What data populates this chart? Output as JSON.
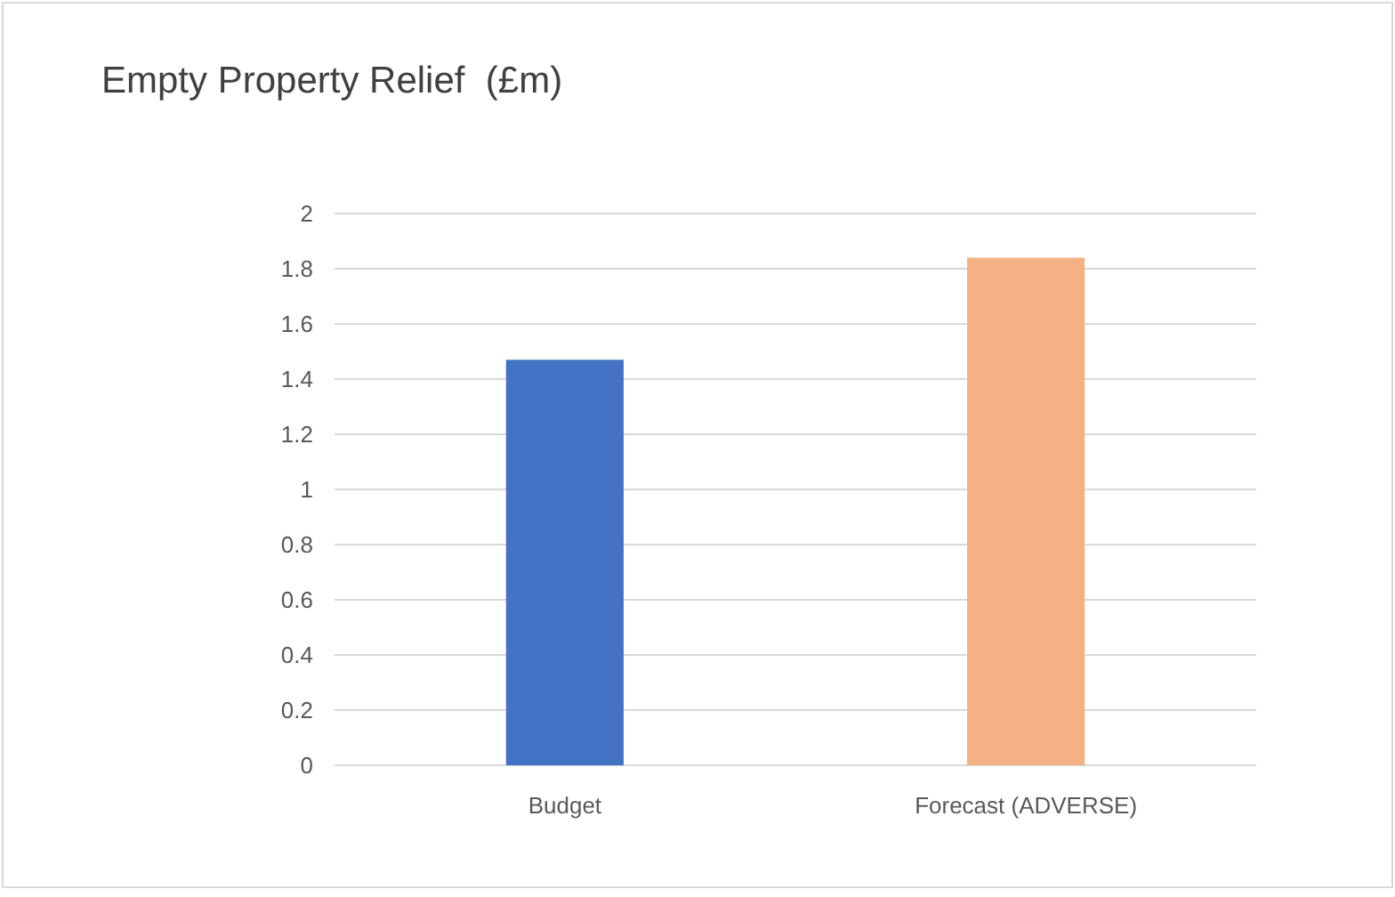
{
  "chart_data": {
    "type": "bar",
    "title": "Empty Property Relief  (£m)",
    "categories": [
      "Budget",
      "Forecast (ADVERSE)"
    ],
    "colors": [
      "#4472c4",
      "#f4b183"
    ],
    "values": [
      1.47,
      1.84
    ],
    "ylim": [
      0,
      2
    ],
    "yticks": [
      0,
      0.2,
      0.4,
      0.6,
      0.8,
      1,
      1.2,
      1.4,
      1.6,
      1.8,
      2
    ],
    "grid": "y"
  }
}
